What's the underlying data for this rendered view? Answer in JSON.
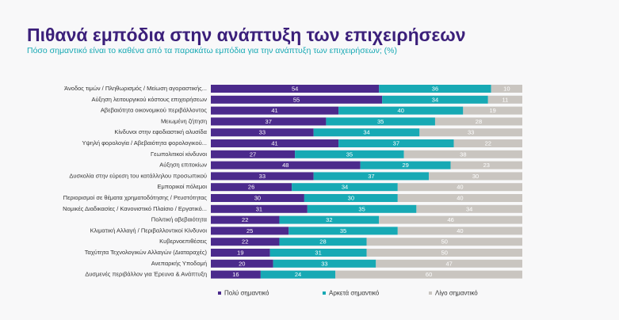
{
  "chart_data": {
    "type": "bar",
    "orientation": "horizontal",
    "stacked": true,
    "title": "Πιθανά εμπόδια στην ανάπτυξη των επιχειρήσεων",
    "subtitle": "Πόσο σημαντικό είναι το καθένα από τα παρακάτω εμπόδια για την ανάπτυξη των επιχειρήσεων; (%)",
    "categories": [
      "Άνοδος τιμών / Πληθωρισμός / Μείωση αγοραστικής...",
      "Αύξηση λειτουργικού κόστους επιχειρήσεων",
      "Αβεβαιότητα οικονομικού περιβάλλοντος",
      "Μειωμένη ζήτηση",
      "Κίνδυνοι στην εφοδιαστική αλυσίδα",
      "Υψηλή φορολογία / Αβεβαιότητα φορολογικού...",
      "Γεωπολιτικοί κίνδυνοι",
      "Αύξηση επιτοκίων",
      "Δυσκολία στην εύρεση του κατάλληλου προσωπικού",
      "Εμπορικοί πόλεμοι",
      "Περιορισμοί σε θέματα χρηματοδότησης / Ρευστότητας",
      "Νομικές Διαδικασίες / Κανονιστικό Πλαίσιο / Εργατικό...",
      "Πολιτική αβεβαιότητα",
      "Κλιματική Αλλαγή / Περιβαλλοντικοί Κίνδυνοι",
      "Κυβερνοεπιθέσεις",
      "Ταχύτητα Τεχνολογικών Αλλαγών (Διαταραχές)",
      "Ανεπαρκής Υποδομή",
      "Δυσμενές περιβάλλον για Έρευνα & Ανάπτυξη"
    ],
    "series": [
      {
        "name": "Πολύ σημαντικό",
        "color": "#4b2a8c",
        "values": [
          54,
          55,
          41,
          37,
          33,
          41,
          27,
          48,
          33,
          26,
          30,
          31,
          22,
          25,
          22,
          19,
          20,
          16
        ]
      },
      {
        "name": "Αρκετά σημαντικό",
        "color": "#17a9b4",
        "values": [
          36,
          34,
          40,
          35,
          34,
          37,
          35,
          29,
          37,
          34,
          30,
          35,
          32,
          35,
          28,
          31,
          33,
          24
        ]
      },
      {
        "name": "Λίγο σημαντικό",
        "color": "#c9c5c0",
        "values": [
          10,
          11,
          19,
          28,
          33,
          22,
          38,
          23,
          30,
          40,
          40,
          34,
          46,
          40,
          50,
          50,
          47,
          60
        ]
      }
    ]
  }
}
